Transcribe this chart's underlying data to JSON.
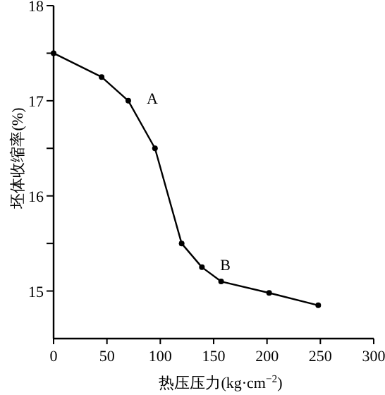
{
  "chart_data": {
    "type": "line",
    "xlabel": "热压压力(kg·cm$^{−2}$)",
    "ylabel": "坯体收缩率(%)",
    "x": [
      0,
      45,
      70,
      95,
      120,
      139,
      157,
      202,
      248
    ],
    "values": [
      17.5,
      17.25,
      17.0,
      16.5,
      15.5,
      15.25,
      15.1,
      14.98,
      14.85
    ],
    "color": "#000000",
    "marker": "circle",
    "line_style": "solid",
    "grid": false,
    "xlim": [
      0,
      300
    ],
    "xticks": [
      0,
      50,
      100,
      150,
      200,
      250,
      300
    ],
    "ylim": [
      14.5,
      18
    ],
    "yticks": [
      15,
      {
        "value": 15.5,
        "label": null
      },
      16,
      {
        "value": 16.5,
        "label": null
      },
      17,
      {
        "value": 17.5,
        "label": null
      },
      18
    ],
    "annotations": [
      {
        "text": "A",
        "x": 70,
        "y": 17.0
      },
      {
        "text": "B",
        "x": 139,
        "y": 15.25
      }
    ]
  }
}
